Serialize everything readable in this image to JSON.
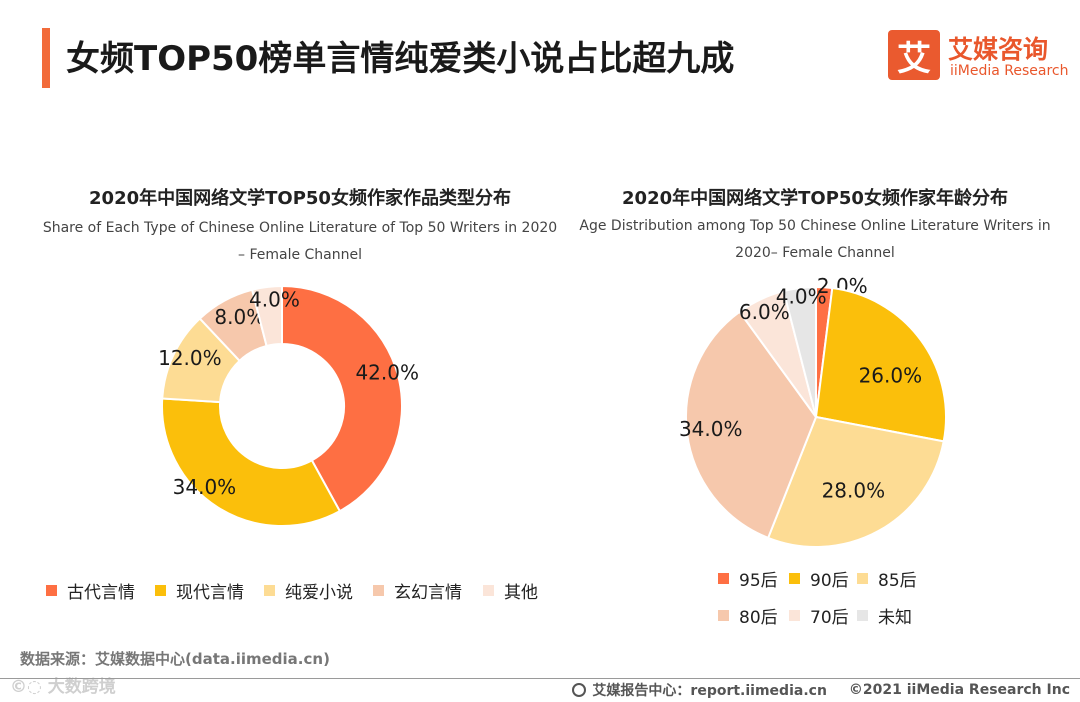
{
  "header": {
    "title": "女频TOP50榜单言情纯爱类小说占比超九成",
    "logo_mark": "艾",
    "logo_cn": "艾媒咨询",
    "logo_en": "iiMedia Research"
  },
  "colors": {
    "accent": "#f26b3a",
    "slice1": "#fe6f43",
    "slice2": "#fbbf0b",
    "slice3": "#fddc94",
    "slice4": "#f6c8ac",
    "slice5": "#fbe5d9",
    "slice6": "#e6e6e6"
  },
  "chart_data": [
    {
      "type": "donut",
      "title": "2020年中国网络文学TOP50女频作家作品类型分布",
      "subtitle_line1": "Share of Each Type of Chinese Online Literature of Top 50 Writers in 2020",
      "subtitle_line2": "– Female Channel",
      "categories": [
        "古代言情",
        "现代言情",
        "纯爱小说",
        "玄幻言情",
        "其他"
      ],
      "values": [
        42.0,
        34.0,
        12.0,
        8.0,
        4.0
      ],
      "labels": [
        "42.0%",
        "34.0%",
        "12.0%",
        "8.0%",
        "4.0%"
      ],
      "unit": "%"
    },
    {
      "type": "pie",
      "title": "2020年中国网络文学TOP50女频作家年龄分布",
      "subtitle_line1": "Age Distribution among Top 50 Chinese Online Literature Writers in",
      "subtitle_line2": "2020– Female  Channel",
      "categories": [
        "95后",
        "90后",
        "85后",
        "80后",
        "70后",
        "未知"
      ],
      "values": [
        2.0,
        26.0,
        28.0,
        34.0,
        6.0,
        4.0
      ],
      "labels": [
        "2.0%",
        "26.0%",
        "28.0%",
        "34.0%",
        "6.0%",
        "4.0%"
      ],
      "unit": "%"
    }
  ],
  "legend_left": [
    "古代言情",
    "现代言情",
    "纯爱小说",
    "玄幻言情",
    "其他"
  ],
  "legend_right": [
    "95后",
    "90后",
    "85后",
    "80后",
    "70后",
    "未知"
  ],
  "footer": {
    "source": "数据来源：艾媒数据中心(data.iimedia.cn)",
    "watermark": "©◌ 大数跨境",
    "report": "艾媒报告中心：report.iimedia.cn",
    "copyright": "©2021  iiMedia Research  Inc"
  }
}
